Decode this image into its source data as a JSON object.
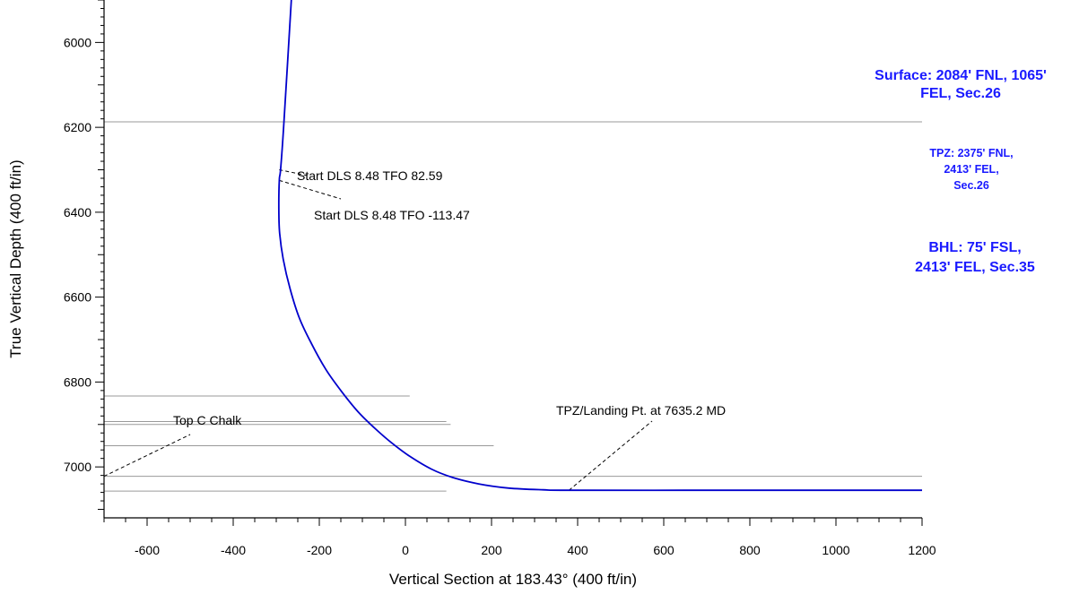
{
  "chart_data": {
    "type": "line",
    "title": "",
    "xlabel": "Vertical Section at 183.43° (400 ft/in)",
    "ylabel": "True Vertical Depth (400 ft/in)",
    "xlim": [
      -700,
      1200
    ],
    "ylim": [
      5900,
      7120
    ],
    "y_inverted": true,
    "x_ticks": [
      -600,
      -400,
      -200,
      0,
      200,
      400,
      600,
      800,
      1000,
      1200
    ],
    "y_ticks": [
      6000,
      6200,
      6400,
      6600,
      6800,
      7000
    ],
    "grid": false,
    "series": [
      {
        "color": "#0000cc",
        "x": [
          -265,
          -283,
          -290,
          -293,
          -294,
          -292,
          -284,
          -268,
          -246,
          -218,
          -185,
          -150,
          -110,
          -70,
          -30,
          10,
          60,
          110,
          170,
          240,
          320,
          380,
          700,
          1000,
          1200
        ],
        "y": [
          5900,
          6200,
          6300,
          6325,
          6400,
          6450,
          6510,
          6580,
          6650,
          6710,
          6770,
          6820,
          6870,
          6910,
          6945,
          6975,
          7005,
          7025,
          7040,
          7050,
          7054,
          7055,
          7055,
          7055,
          7055
        ]
      }
    ],
    "formation_lines": [
      {
        "tvd": 6187,
        "x_from": -700,
        "x_to": 1200
      },
      {
        "tvd": 6833,
        "x_from": -700,
        "x_to": 10
      },
      {
        "tvd": 6893,
        "x_from": -700,
        "x_to": 95
      },
      {
        "tvd": 6900,
        "x_from": -700,
        "x_to": 105
      },
      {
        "tvd": 6950,
        "x_from": -700,
        "x_to": 205
      },
      {
        "tvd": 7022,
        "x_from": -700,
        "x_to": 1200
      },
      {
        "tvd": 7057,
        "x_from": -700,
        "x_to": 95
      }
    ],
    "annotations": [
      {
        "text": "Start DLS 8.48 TFO 82.59",
        "point": [
          -293,
          6300
        ]
      },
      {
        "text": "Start DLS 8.48 TFO -113.47",
        "point": [
          -293,
          6325
        ]
      },
      {
        "text": "Top C Chalk",
        "point": [
          -700,
          7022
        ]
      },
      {
        "text": "TPZ/Landing Pt. at 7635.2 MD",
        "point": [
          380,
          7055
        ]
      }
    ],
    "well_notes": [
      {
        "lines": [
          "Surface: 2084' FNL, 1065'",
          "FEL, Sec.26"
        ]
      },
      {
        "lines": [
          "TPZ: 2375' FNL,",
          "2413' FEL,",
          "Sec.26"
        ]
      },
      {
        "lines": [
          "BHL: 75' FSL,",
          "2413' FEL, Sec.35"
        ]
      }
    ],
    "colors": {
      "trajectory": "#0000cc",
      "well_notes": "#1a1aff",
      "formation_lines": "#9a9a9a"
    }
  }
}
